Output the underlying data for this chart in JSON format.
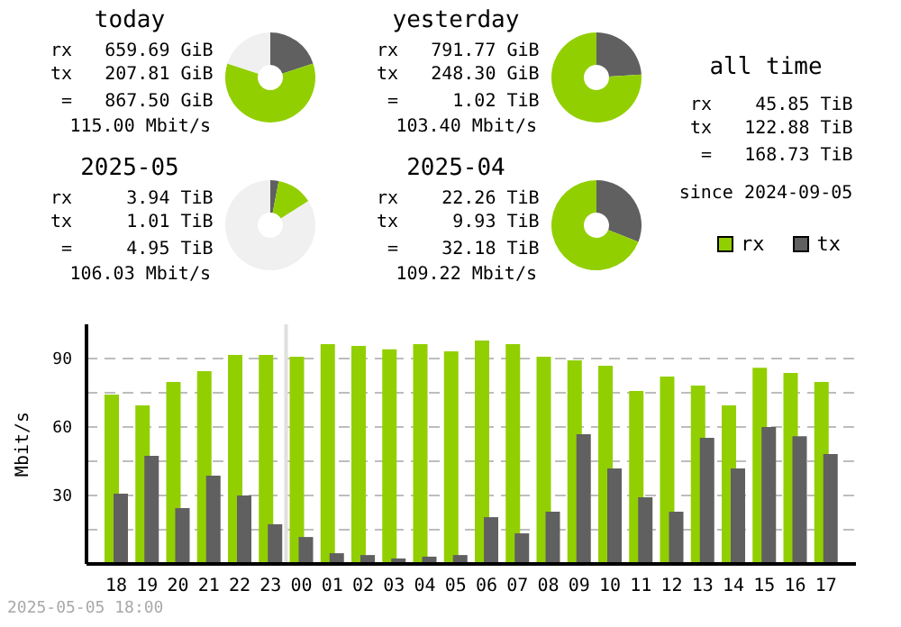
{
  "chart_data": [
    {
      "type": "donut",
      "title": "today",
      "annotations": [
        "rx   659.69 GiB",
        "tx   207.81 GiB",
        " =   867.50 GiB",
        "115.00 Mbit/s"
      ],
      "categories": [
        null,
        null,
        null
      ],
      "values": [
        20,
        60,
        20
      ],
      "colors": [
        "#606060",
        "#92cf00",
        "#f0f0f0"
      ]
    },
    {
      "type": "donut",
      "title": "yesterday",
      "annotations": [
        "rx   791.77 GiB",
        "tx   248.30 GiB",
        " =     1.02 TiB",
        "103.40 Mbit/s"
      ],
      "categories": [
        null,
        null
      ],
      "values": [
        24,
        76
      ],
      "colors": [
        "#606060",
        "#92cf00"
      ]
    },
    {
      "type": "donut",
      "title": "2025-05",
      "annotations": [
        "rx     3.94 TiB",
        "tx     1.01 TiB",
        " =     4.95 TiB",
        "106.03 Mbit/s"
      ],
      "categories": [
        null,
        null,
        null
      ],
      "values": [
        3,
        13,
        84
      ],
      "colors": [
        "#606060",
        "#92cf00",
        "#f0f0f0"
      ]
    },
    {
      "type": "donut",
      "title": "2025-04",
      "annotations": [
        "rx    22.26 TiB",
        "tx     9.93 TiB",
        " =    32.18 TiB",
        "109.22 Mbit/s"
      ],
      "categories": [
        null,
        null
      ],
      "values": [
        31,
        69
      ],
      "colors": [
        "#606060",
        "#92cf00"
      ]
    },
    {
      "type": "other",
      "title": "all time",
      "annotations": [
        "rx    45.85 TiB",
        "tx   122.88 TiB",
        " =   168.73 TiB",
        "since 2024-09-05"
      ]
    },
    {
      "type": "bar",
      "ylabel": "Mbit/s",
      "categories": [
        "18",
        "19",
        "20",
        "21",
        "22",
        "23",
        "00",
        "01",
        "02",
        "03",
        "04",
        "05",
        "06",
        "07",
        "08",
        "09",
        "10",
        "11",
        "12",
        "13",
        "14",
        "15",
        "16",
        "17"
      ],
      "series": [
        {
          "name": "rx",
          "color": "#92cf00",
          "values": [
            74.2,
            69.5,
            79.7,
            84.5,
            91.6,
            91.6,
            90.8,
            96.3,
            95.5,
            94,
            96.3,
            93.2,
            97.9,
            96.3,
            90.8,
            89.2,
            86.8,
            75.8,
            82.1,
            78.2,
            69.5,
            86,
            83.7,
            79.7
          ]
        },
        {
          "name": "tx",
          "color": "#606060",
          "values": [
            30.8,
            47.4,
            24.5,
            38.7,
            30,
            17.4,
            11.8,
            4.7,
            3.9,
            2.4,
            3.2,
            3.9,
            20.5,
            13.4,
            22.9,
            56.8,
            41.8,
            29.2,
            22.9,
            55.3,
            41.8,
            60,
            56,
            48.2
          ]
        }
      ],
      "ylim": [
        0,
        105
      ],
      "yticks": [
        {
          "value": 15,
          "label": null
        },
        30,
        {
          "value": 45,
          "label": null
        },
        60,
        {
          "value": 75,
          "label": null
        },
        90
      ],
      "grid": "y",
      "legend": "top right",
      "ref_lines": [
        {
          "axis": "x",
          "value": "00",
          "color": "#e0e0e0"
        }
      ],
      "annotations": [
        "2025-05-05 18:00"
      ]
    }
  ]
}
